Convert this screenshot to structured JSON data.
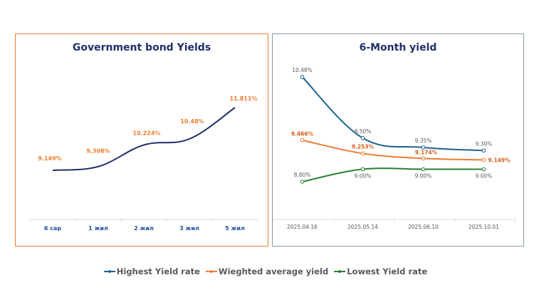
{
  "chart_data": [
    {
      "type": "line",
      "title": "Government bond Yields",
      "categories": [
        "6 сар",
        "1 жил",
        "2 жил",
        "3 жил",
        "5 жил"
      ],
      "series": [
        {
          "name": "Government bond yield",
          "color": "#1F2F6B",
          "values": [
            9.149,
            9.308,
            10.224,
            10.48,
            11.811
          ],
          "labels": [
            "9.149%",
            "9.308%",
            "10.224%",
            "10.48%",
            "11.811%"
          ],
          "label_color": "#ED7D31"
        }
      ],
      "xlabel": "",
      "ylabel": "",
      "grid": false,
      "smooth": true,
      "legend": "none"
    },
    {
      "type": "line",
      "title": "6-Month yield",
      "categories": [
        "2025.04.16",
        "2025.05.14",
        "2025.06.10",
        "2025.10.01"
      ],
      "series": [
        {
          "name": "Highest Yield rate",
          "color": "#1F6391",
          "values": [
            10.48,
            9.5,
            9.35,
            9.3
          ],
          "labels": [
            "10.48%",
            "9.50%",
            "9.35%",
            "9.30%"
          ],
          "label_color": "#595959"
        },
        {
          "name": "Wieghted average yield",
          "color": "#ED7D31",
          "values": [
            9.466,
            9.253,
            9.174,
            9.149
          ],
          "labels": [
            "9.466%",
            "9.253%",
            "9.174%",
            "9.149%"
          ],
          "label_color": "#D45F1E"
        },
        {
          "name": "Lowest Yield rate",
          "color": "#2E7D32",
          "values": [
            8.8,
            9.0,
            9.0,
            9.0
          ],
          "labels": [
            "8.80%",
            "9.00%",
            "9.00%",
            "9.00%"
          ],
          "label_color": "#595959"
        }
      ],
      "xlabel": "",
      "ylabel": "",
      "grid": false,
      "smooth": true,
      "legend": "bottom"
    }
  ],
  "legend": {
    "items": [
      {
        "label": "Highest Yield rate",
        "color": "#1F6391"
      },
      {
        "label": "Wieghted average yield",
        "color": "#ED7D31"
      },
      {
        "label": "Lowest Yield rate",
        "color": "#2E7D32"
      }
    ]
  }
}
